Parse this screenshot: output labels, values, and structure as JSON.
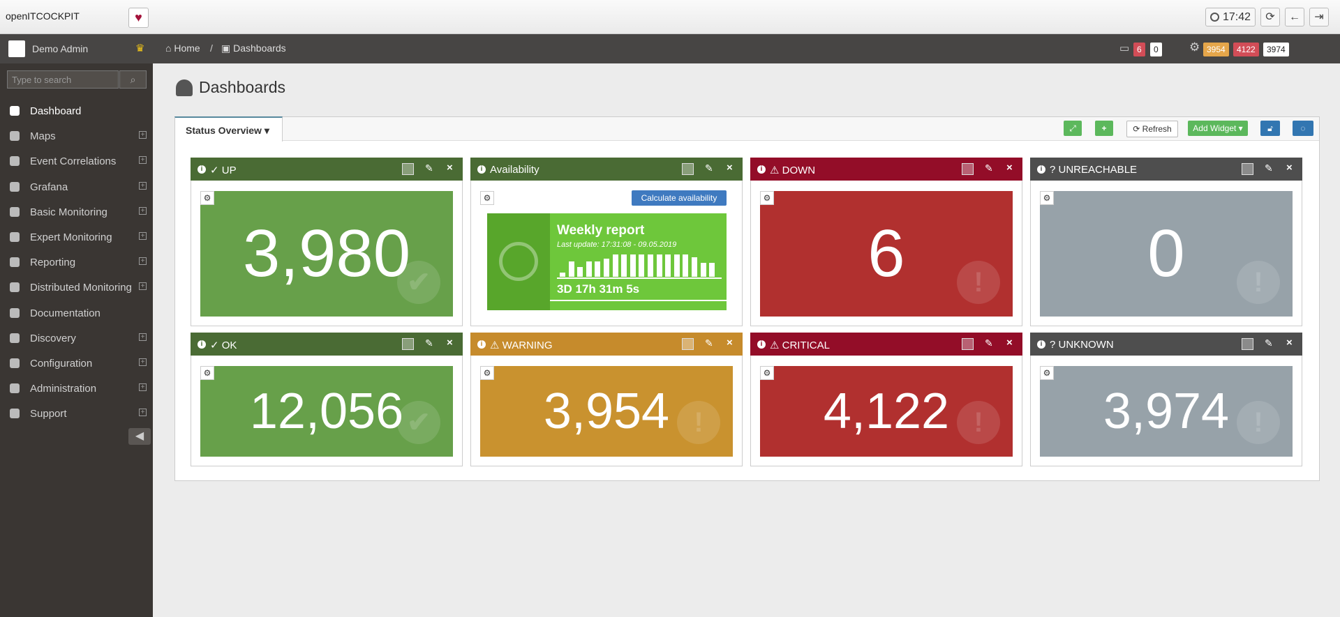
{
  "top_bar": {
    "brand": "openITCOCKPIT",
    "time": "17:42"
  },
  "user": {
    "name": "Demo Admin"
  },
  "search": {
    "placeholder": "Type to search"
  },
  "menu": [
    {
      "label": "Dashboard",
      "expandable": false,
      "active": true
    },
    {
      "label": "Maps",
      "expandable": true
    },
    {
      "label": "Event Correlations",
      "expandable": true
    },
    {
      "label": "Grafana",
      "expandable": true
    },
    {
      "label": "Basic Monitoring",
      "expandable": true
    },
    {
      "label": "Expert Monitoring",
      "expandable": true
    },
    {
      "label": "Reporting",
      "expandable": true
    },
    {
      "label": "Distributed Monitoring",
      "expandable": true
    },
    {
      "label": "Documentation",
      "expandable": false
    },
    {
      "label": "Discovery",
      "expandable": true
    },
    {
      "label": "Configuration",
      "expandable": true
    },
    {
      "label": "Administration",
      "expandable": true
    },
    {
      "label": "Support",
      "expandable": true
    }
  ],
  "breadcrumb": [
    "Home",
    "Dashboards"
  ],
  "header_counters": {
    "hosts": [
      "6",
      "0"
    ],
    "services": [
      "3954",
      "4122",
      "3974"
    ]
  },
  "page_title": "Dashboards",
  "tab": "Status Overview",
  "toolbar": {
    "refresh": "Refresh",
    "add_widget": "Add Widget"
  },
  "widgets": [
    {
      "kind": "counter",
      "title": "✓ UP",
      "value": "3,980",
      "tone": "green"
    },
    {
      "kind": "availability",
      "title": "Availability",
      "button": "Calculate availability",
      "report_title": "Weekly report",
      "last_update": "Last update: 17:31:08 - 09.05.2019",
      "duration": "3D 17h 31m 5s"
    },
    {
      "kind": "counter",
      "title": "⚠ DOWN",
      "value": "6",
      "tone": "red"
    },
    {
      "kind": "counter",
      "title": "? UNREACHABLE",
      "value": "0",
      "tone": "gray"
    },
    {
      "kind": "counter",
      "title": "✓ OK",
      "value": "12,056",
      "tone": "green"
    },
    {
      "kind": "counter",
      "title": "⚠ WARNING",
      "value": "3,954",
      "tone": "orange"
    },
    {
      "kind": "counter",
      "title": "⚠ CRITICAL",
      "value": "4,122",
      "tone": "red"
    },
    {
      "kind": "counter",
      "title": "? UNKNOWN",
      "value": "3,974",
      "tone": "gray"
    }
  ]
}
